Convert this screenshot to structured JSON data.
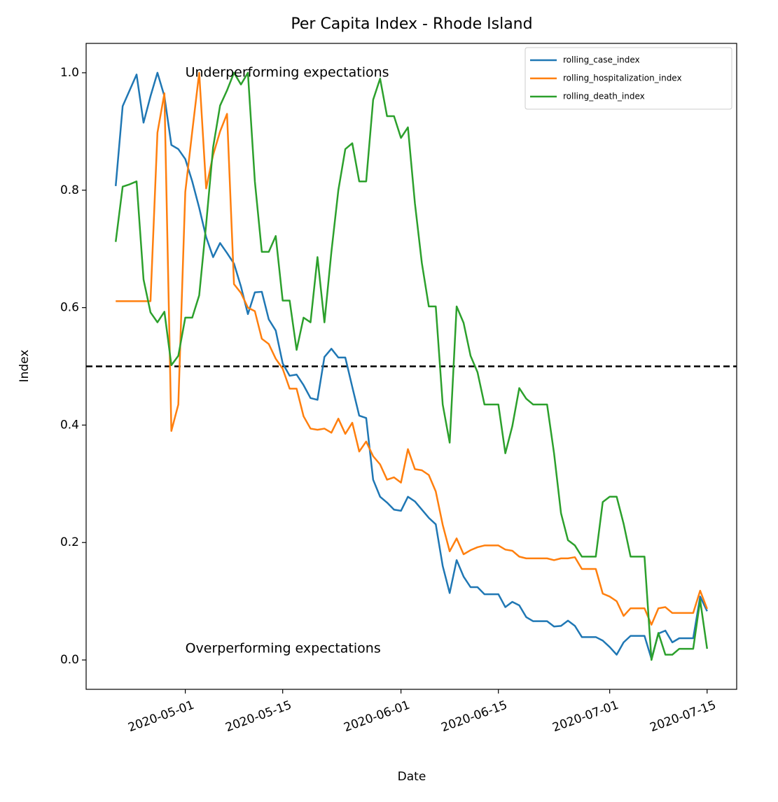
{
  "chart_data": {
    "type": "line",
    "title": "Per Capita Index - Rhode Island",
    "xlabel": "Date",
    "ylabel": "Index",
    "annotations": [
      "Underperforming expectations",
      "Overperforming expectations"
    ],
    "reference_line": 0.5,
    "legend": "upper right",
    "x": [
      "2020-04-21",
      "2020-04-22",
      "2020-04-23",
      "2020-04-24",
      "2020-04-25",
      "2020-04-26",
      "2020-04-27",
      "2020-04-28",
      "2020-04-29",
      "2020-04-30",
      "2020-05-01",
      "2020-05-02",
      "2020-05-03",
      "2020-05-04",
      "2020-05-05",
      "2020-05-06",
      "2020-05-07",
      "2020-05-08",
      "2020-05-09",
      "2020-05-10",
      "2020-05-11",
      "2020-05-12",
      "2020-05-13",
      "2020-05-14",
      "2020-05-15",
      "2020-05-16",
      "2020-05-17",
      "2020-05-18",
      "2020-05-19",
      "2020-05-20",
      "2020-05-21",
      "2020-05-22",
      "2020-05-23",
      "2020-05-24",
      "2020-05-25",
      "2020-05-26",
      "2020-05-27",
      "2020-05-28",
      "2020-05-29",
      "2020-05-30",
      "2020-05-31",
      "2020-06-01",
      "2020-06-02",
      "2020-06-03",
      "2020-06-04",
      "2020-06-05",
      "2020-06-06",
      "2020-06-07",
      "2020-06-08",
      "2020-06-09",
      "2020-06-10",
      "2020-06-11",
      "2020-06-12",
      "2020-06-13",
      "2020-06-14",
      "2020-06-15",
      "2020-06-16",
      "2020-06-17",
      "2020-06-18",
      "2020-06-19",
      "2020-06-20",
      "2020-06-21",
      "2020-06-22",
      "2020-06-23",
      "2020-06-24",
      "2020-06-25",
      "2020-06-26",
      "2020-06-27",
      "2020-06-28",
      "2020-06-29",
      "2020-06-30",
      "2020-07-01",
      "2020-07-02",
      "2020-07-03",
      "2020-07-04",
      "2020-07-05",
      "2020-07-06",
      "2020-07-07",
      "2020-07-08",
      "2020-07-09",
      "2020-07-10",
      "2020-07-11",
      "2020-07-12",
      "2020-07-13",
      "2020-07-14",
      "2020-07-15"
    ],
    "series": [
      {
        "name": "rolling_case_index",
        "color": "#1f77b4",
        "values": [
          0.807,
          0.943,
          0.97,
          0.997,
          0.915,
          0.96,
          1.0,
          0.96,
          0.877,
          0.87,
          0.853,
          0.815,
          0.77,
          0.72,
          0.686,
          0.71,
          0.693,
          0.675,
          0.636,
          0.589,
          0.626,
          0.627,
          0.58,
          0.561,
          0.505,
          0.484,
          0.486,
          0.468,
          0.446,
          0.443,
          0.516,
          0.53,
          0.515,
          0.515,
          0.465,
          0.416,
          0.412,
          0.307,
          0.278,
          0.268,
          0.256,
          0.254,
          0.278,
          0.27,
          0.256,
          0.242,
          0.231,
          0.16,
          0.114,
          0.17,
          0.142,
          0.124,
          0.124,
          0.112,
          0.112,
          0.112,
          0.09,
          0.099,
          0.093,
          0.073,
          0.066,
          0.066,
          0.066,
          0.057,
          0.058,
          0.067,
          0.058,
          0.039,
          0.039,
          0.039,
          0.033,
          0.022,
          0.009,
          0.03,
          0.041,
          0.041,
          0.041,
          0.002,
          0.045,
          0.05,
          0.03,
          0.037,
          0.037,
          0.037,
          0.108,
          0.083
        ]
      },
      {
        "name": "rolling_hospitalization_index",
        "color": "#ff7f0e",
        "values": [
          0.611,
          0.611,
          0.611,
          0.611,
          0.611,
          0.611,
          0.898,
          0.965,
          0.39,
          0.435,
          0.797,
          0.9,
          1.0,
          0.803,
          0.86,
          0.9,
          0.93,
          0.64,
          0.625,
          0.6,
          0.594,
          0.547,
          0.538,
          0.513,
          0.496,
          0.462,
          0.462,
          0.415,
          0.394,
          0.392,
          0.394,
          0.387,
          0.411,
          0.385,
          0.404,
          0.355,
          0.372,
          0.347,
          0.333,
          0.307,
          0.311,
          0.302,
          0.359,
          0.325,
          0.323,
          0.315,
          0.287,
          0.23,
          0.185,
          0.207,
          0.18,
          0.187,
          0.192,
          0.195,
          0.195,
          0.195,
          0.188,
          0.186,
          0.176,
          0.173,
          0.173,
          0.173,
          0.173,
          0.17,
          0.173,
          0.173,
          0.175,
          0.155,
          0.155,
          0.155,
          0.113,
          0.108,
          0.1,
          0.075,
          0.088,
          0.088,
          0.088,
          0.06,
          0.088,
          0.09,
          0.08,
          0.08,
          0.08,
          0.08,
          0.118,
          0.087
        ]
      },
      {
        "name": "rolling_death_index",
        "color": "#2ca02c",
        "values": [
          0.712,
          0.806,
          0.81,
          0.815,
          0.648,
          0.592,
          0.575,
          0.593,
          0.502,
          0.518,
          0.583,
          0.583,
          0.621,
          0.742,
          0.873,
          0.944,
          0.97,
          1.0,
          0.98,
          1.0,
          0.815,
          0.695,
          0.695,
          0.722,
          0.612,
          0.612,
          0.528,
          0.583,
          0.575,
          0.686,
          0.575,
          0.695,
          0.8,
          0.87,
          0.88,
          0.815,
          0.815,
          0.954,
          0.99,
          0.926,
          0.926,
          0.889,
          0.907,
          0.778,
          0.676,
          0.602,
          0.602,
          0.435,
          0.37,
          0.602,
          0.574,
          0.518,
          0.49,
          0.435,
          0.435,
          0.435,
          0.352,
          0.398,
          0.463,
          0.445,
          0.435,
          0.435,
          0.435,
          0.352,
          0.25,
          0.204,
          0.195,
          0.176,
          0.176,
          0.176,
          0.269,
          0.278,
          0.278,
          0.232,
          0.176,
          0.176,
          0.176,
          0.0,
          0.046,
          0.009,
          0.009,
          0.019,
          0.019,
          0.019,
          0.102,
          0.019
        ]
      }
    ],
    "xlim": [
      "2020-04-16T18:00:00Z",
      "2020-07-19T06:00:00Z"
    ],
    "xticks": [
      "2020-05-01",
      "2020-05-15",
      "2020-06-01",
      "2020-06-15",
      "2020-07-01",
      "2020-07-15"
    ],
    "ylim": [
      -0.05,
      1.05
    ],
    "yticks": [
      {
        "value": 0,
        "label": "0.0"
      },
      0.2,
      0.4,
      0.6,
      0.8,
      {
        "value": 1,
        "label": "1.0"
      }
    ]
  }
}
